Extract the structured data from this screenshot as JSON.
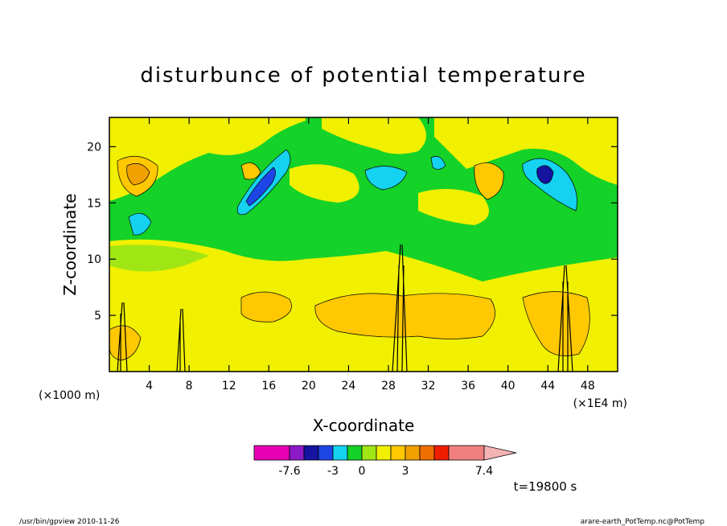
{
  "chart_data": {
    "type": "heatmap",
    "title": "disturbunce of potential temperature",
    "xlabel": "X-coordinate",
    "ylabel": "Z-coordinate",
    "x_unit_left": "(×1000 m)",
    "x_unit_right": "(×1E4 m)",
    "x_ticks": [
      "4",
      "8",
      "12",
      "16",
      "20",
      "24",
      "28",
      "32",
      "36",
      "40",
      "44",
      "48"
    ],
    "y_ticks": [
      "5",
      "10",
      "15",
      "20"
    ],
    "xlim": [
      0,
      51
    ],
    "ylim": [
      0,
      22.6
    ],
    "colorbar": {
      "labels": [
        "-7.6",
        "-3",
        "0",
        "3",
        "7.4"
      ],
      "colors": [
        "#e800b4",
        "#8c1ac8",
        "#1414a0",
        "#1e46e6",
        "#14d2f0",
        "#14d228",
        "#a0e614",
        "#f0f000",
        "#ffc800",
        "#f0a000",
        "#f06e00",
        "#f01e00",
        "#f08080",
        "#f5b4b4"
      ]
    },
    "time_label": "t=19800 s",
    "footer_left": "/usr/bin/gpview   2010-11-26",
    "footer_right": "arare-earth_PotTemp.nc@PotTemp"
  }
}
